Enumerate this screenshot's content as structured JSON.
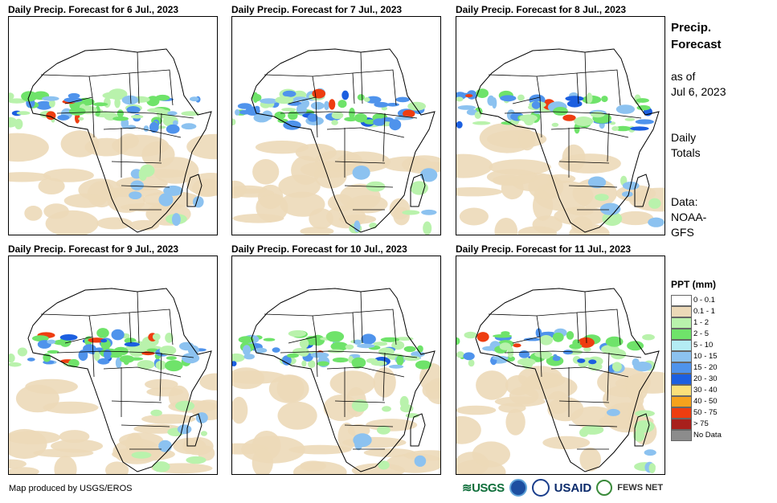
{
  "panels": [
    {
      "title": "Daily Precip. Forecast for 6 Jul., 2023"
    },
    {
      "title": "Daily Precip. Forecast for 7 Jul., 2023"
    },
    {
      "title": "Daily Precip. Forecast for 8 Jul., 2023"
    },
    {
      "title": "Daily Precip. Forecast for 9 Jul., 2023"
    },
    {
      "title": "Daily Precip. Forecast for 10 Jul., 2023"
    },
    {
      "title": "Daily Precip. Forecast for 11 Jul., 2023"
    }
  ],
  "side": {
    "title_line1": "Precip.",
    "title_line2": "Forecast",
    "asof_line1": "as of",
    "asof_line2": "Jul 6, 2023",
    "daily_line1": "Daily",
    "daily_line2": "Totals",
    "data_line1": "Data:",
    "data_line2": "NOAA-",
    "data_line3": "GFS"
  },
  "legend": {
    "title": "PPT (mm)",
    "items": [
      {
        "label": "0 - 0.1",
        "color": "#ffffff"
      },
      {
        "label": "0.1 - 1",
        "color": "#ecd9b8"
      },
      {
        "label": "1 - 2",
        "color": "#b9f2ac"
      },
      {
        "label": "2 - 5",
        "color": "#6fe36a"
      },
      {
        "label": "5 - 10",
        "color": "#b4ecf4"
      },
      {
        "label": "10 - 15",
        "color": "#8cc2f0"
      },
      {
        "label": "15 - 20",
        "color": "#4f93ec"
      },
      {
        "label": "20 - 30",
        "color": "#1c5fe0"
      },
      {
        "label": "30 - 40",
        "color": "#fbe07a"
      },
      {
        "label": "40 - 50",
        "color": "#f6a21c"
      },
      {
        "label": "50 - 75",
        "color": "#ee3d10"
      },
      {
        "label": "> 75",
        "color": "#a8201c"
      },
      {
        "label": "No Data",
        "color": "#8c8c8c"
      }
    ]
  },
  "footer": {
    "credit": "Map produced by USGS/EROS",
    "logo_usgs": "≋USGS",
    "logo_usaid": "USAID",
    "logo_fews": "FEWS NET"
  }
}
